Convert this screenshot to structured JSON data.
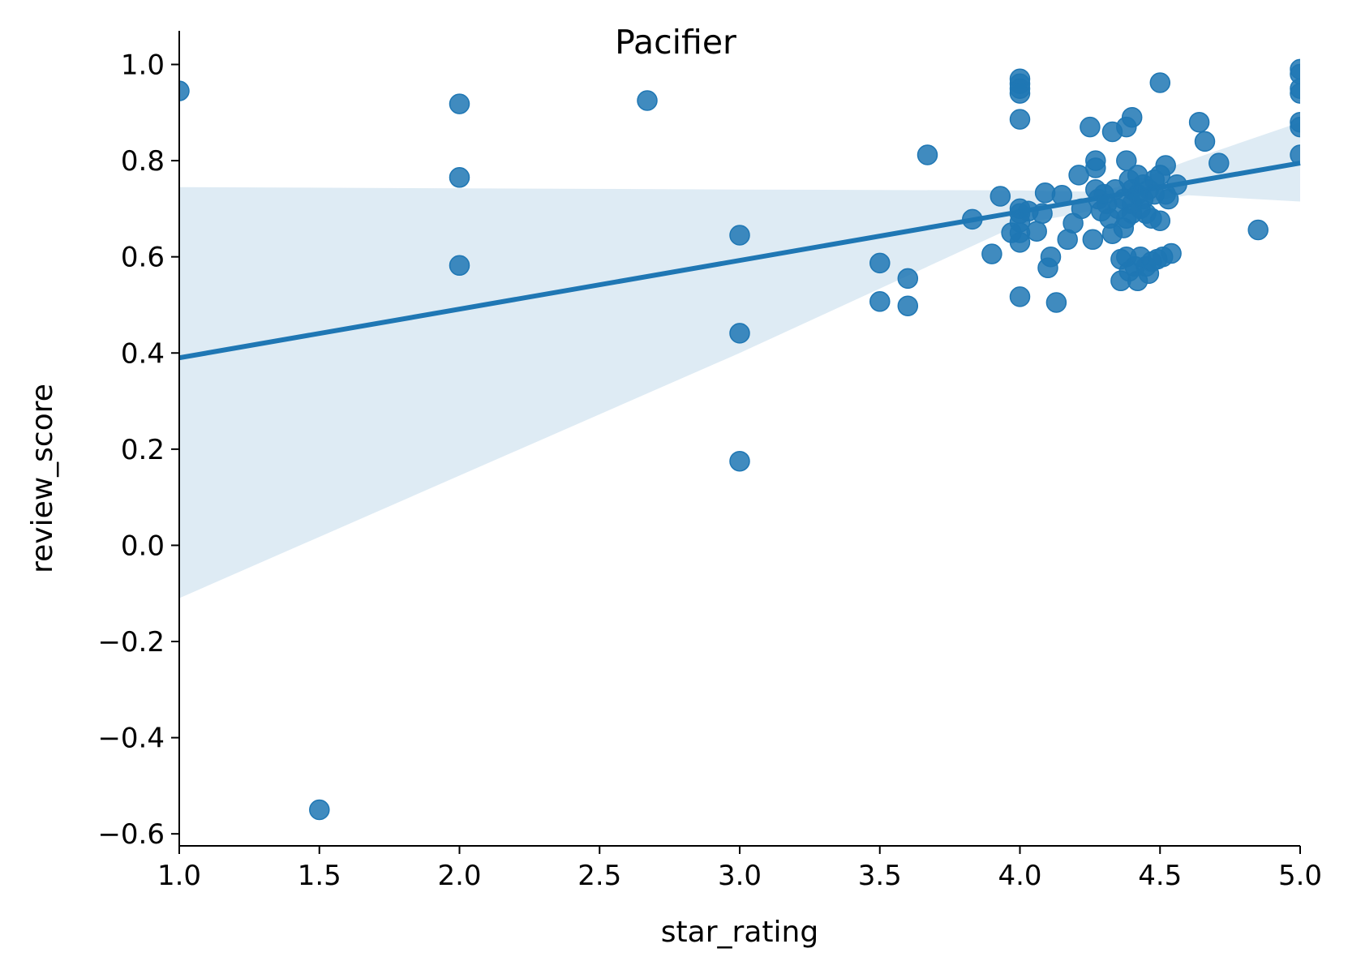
{
  "chart_data": {
    "type": "scatter",
    "title": "Pacifier",
    "xlabel": "star_rating",
    "ylabel": "review_score",
    "xlim": [
      1.0,
      5.0
    ],
    "ylim": [
      -0.625,
      1.07
    ],
    "xticks": [
      1.0,
      1.5,
      2.0,
      2.5,
      3.0,
      3.5,
      4.0,
      4.5,
      5.0
    ],
    "xtick_labels": [
      "1.0",
      "1.5",
      "2.0",
      "2.5",
      "3.0",
      "3.5",
      "4.0",
      "4.5",
      "5.0"
    ],
    "yticks": [
      -0.6,
      -0.4,
      -0.2,
      0.0,
      0.2,
      0.4,
      0.6,
      0.8,
      1.0
    ],
    "ytick_labels": [
      "−0.6",
      "−0.4",
      "−0.2",
      "0.0",
      "0.2",
      "0.4",
      "0.6",
      "0.8",
      "1.0"
    ],
    "grid": false,
    "colors": {
      "points": "#1f77b4",
      "line": "#1f77b4",
      "band": "#1f77b4"
    },
    "regression": {
      "x": [
        1.0,
        5.0
      ],
      "y": [
        0.39,
        0.795
      ]
    },
    "confidence_band": [
      {
        "x": 1.0,
        "lower": -0.11,
        "upper": 0.745
      },
      {
        "x": 3.0,
        "lower": 0.4,
        "upper": 0.74
      },
      {
        "x": 4.0,
        "lower": 0.668,
        "upper": 0.738
      },
      {
        "x": 4.3,
        "lower": 0.7,
        "upper": 0.735
      },
      {
        "x": 4.6,
        "lower": 0.728,
        "upper": 0.8
      },
      {
        "x": 5.0,
        "lower": 0.715,
        "upper": 0.88
      }
    ],
    "points": [
      {
        "x": 1.0,
        "y": 0.945
      },
      {
        "x": 1.5,
        "y": -0.55
      },
      {
        "x": 2.0,
        "y": 0.918
      },
      {
        "x": 2.0,
        "y": 0.765
      },
      {
        "x": 2.0,
        "y": 0.582
      },
      {
        "x": 2.67,
        "y": 0.925
      },
      {
        "x": 3.0,
        "y": 0.645
      },
      {
        "x": 3.0,
        "y": 0.441
      },
      {
        "x": 3.0,
        "y": 0.175
      },
      {
        "x": 3.5,
        "y": 0.587
      },
      {
        "x": 3.5,
        "y": 0.507
      },
      {
        "x": 3.6,
        "y": 0.555
      },
      {
        "x": 3.6,
        "y": 0.498
      },
      {
        "x": 3.67,
        "y": 0.812
      },
      {
        "x": 3.83,
        "y": 0.678
      },
      {
        "x": 3.9,
        "y": 0.606
      },
      {
        "x": 3.93,
        "y": 0.726
      },
      {
        "x": 3.97,
        "y": 0.65
      },
      {
        "x": 4.0,
        "y": 0.97
      },
      {
        "x": 4.0,
        "y": 0.96
      },
      {
        "x": 4.0,
        "y": 0.95
      },
      {
        "x": 4.0,
        "y": 0.94
      },
      {
        "x": 4.0,
        "y": 0.886
      },
      {
        "x": 4.0,
        "y": 0.7
      },
      {
        "x": 4.0,
        "y": 0.69
      },
      {
        "x": 4.0,
        "y": 0.672
      },
      {
        "x": 4.0,
        "y": 0.65
      },
      {
        "x": 4.0,
        "y": 0.63
      },
      {
        "x": 4.0,
        "y": 0.517
      },
      {
        "x": 4.03,
        "y": 0.695
      },
      {
        "x": 4.06,
        "y": 0.653
      },
      {
        "x": 4.08,
        "y": 0.69
      },
      {
        "x": 4.09,
        "y": 0.733
      },
      {
        "x": 4.1,
        "y": 0.577
      },
      {
        "x": 4.11,
        "y": 0.6
      },
      {
        "x": 4.13,
        "y": 0.505
      },
      {
        "x": 4.15,
        "y": 0.728
      },
      {
        "x": 4.17,
        "y": 0.636
      },
      {
        "x": 4.19,
        "y": 0.67
      },
      {
        "x": 4.21,
        "y": 0.77
      },
      {
        "x": 4.22,
        "y": 0.7
      },
      {
        "x": 4.25,
        "y": 0.87
      },
      {
        "x": 4.26,
        "y": 0.636
      },
      {
        "x": 4.27,
        "y": 0.8
      },
      {
        "x": 4.27,
        "y": 0.785
      },
      {
        "x": 4.27,
        "y": 0.74
      },
      {
        "x": 4.28,
        "y": 0.72
      },
      {
        "x": 4.29,
        "y": 0.695
      },
      {
        "x": 4.3,
        "y": 0.73
      },
      {
        "x": 4.31,
        "y": 0.71
      },
      {
        "x": 4.32,
        "y": 0.68
      },
      {
        "x": 4.33,
        "y": 0.648
      },
      {
        "x": 4.33,
        "y": 0.86
      },
      {
        "x": 4.34,
        "y": 0.74
      },
      {
        "x": 4.35,
        "y": 0.7
      },
      {
        "x": 4.36,
        "y": 0.595
      },
      {
        "x": 4.36,
        "y": 0.55
      },
      {
        "x": 4.37,
        "y": 0.66
      },
      {
        "x": 4.37,
        "y": 0.72
      },
      {
        "x": 4.38,
        "y": 0.87
      },
      {
        "x": 4.38,
        "y": 0.8
      },
      {
        "x": 4.38,
        "y": 0.68
      },
      {
        "x": 4.38,
        "y": 0.6
      },
      {
        "x": 4.39,
        "y": 0.76
      },
      {
        "x": 4.39,
        "y": 0.57
      },
      {
        "x": 4.4,
        "y": 0.89
      },
      {
        "x": 4.4,
        "y": 0.74
      },
      {
        "x": 4.4,
        "y": 0.71
      },
      {
        "x": 4.4,
        "y": 0.69
      },
      {
        "x": 4.41,
        "y": 0.58
      },
      {
        "x": 4.42,
        "y": 0.77
      },
      {
        "x": 4.42,
        "y": 0.73
      },
      {
        "x": 4.42,
        "y": 0.55
      },
      {
        "x": 4.43,
        "y": 0.7
      },
      {
        "x": 4.43,
        "y": 0.6
      },
      {
        "x": 4.44,
        "y": 0.75
      },
      {
        "x": 4.44,
        "y": 0.72
      },
      {
        "x": 4.45,
        "y": 0.69
      },
      {
        "x": 4.45,
        "y": 0.58
      },
      {
        "x": 4.46,
        "y": 0.74
      },
      {
        "x": 4.46,
        "y": 0.565
      },
      {
        "x": 4.47,
        "y": 0.68
      },
      {
        "x": 4.47,
        "y": 0.59
      },
      {
        "x": 4.48,
        "y": 0.76
      },
      {
        "x": 4.48,
        "y": 0.73
      },
      {
        "x": 4.49,
        "y": 0.595
      },
      {
        "x": 4.5,
        "y": 0.962
      },
      {
        "x": 4.5,
        "y": 0.77
      },
      {
        "x": 4.5,
        "y": 0.675
      },
      {
        "x": 4.51,
        "y": 0.6
      },
      {
        "x": 4.52,
        "y": 0.79
      },
      {
        "x": 4.52,
        "y": 0.73
      },
      {
        "x": 4.53,
        "y": 0.72
      },
      {
        "x": 4.54,
        "y": 0.607
      },
      {
        "x": 4.56,
        "y": 0.75
      },
      {
        "x": 4.64,
        "y": 0.88
      },
      {
        "x": 4.66,
        "y": 0.84
      },
      {
        "x": 4.71,
        "y": 0.795
      },
      {
        "x": 4.85,
        "y": 0.656
      },
      {
        "x": 5.0,
        "y": 0.99
      },
      {
        "x": 5.0,
        "y": 0.98
      },
      {
        "x": 5.0,
        "y": 0.95
      },
      {
        "x": 5.0,
        "y": 0.94
      },
      {
        "x": 5.0,
        "y": 0.88
      },
      {
        "x": 5.0,
        "y": 0.87
      },
      {
        "x": 5.0,
        "y": 0.812
      }
    ]
  }
}
